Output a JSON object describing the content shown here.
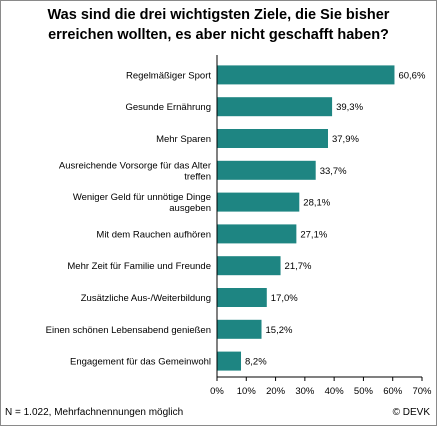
{
  "chart_data": {
    "type": "bar",
    "orientation": "horizontal",
    "title": "Was sind die drei wichtigsten Ziele, die Sie bisher\nerreichen wollten, es aber nicht geschafft haben?",
    "categories": [
      "Regelmäßiger Sport",
      "Gesunde Ernährung",
      "Mehr Sparen",
      "Ausreichende Vorsorge für das Alter\ntreffen",
      "Weniger Geld für unnötige Dinge\nausgeben",
      "Mit dem Rauchen aufhören",
      "Mehr Zeit für Familie und Freunde",
      "Zusätzliche Aus-/Weiterbildung",
      "Einen schönen Lebensabend genießen",
      "Engagement für das Gemeinwohl"
    ],
    "values": [
      60.6,
      39.3,
      37.9,
      33.7,
      28.1,
      27.1,
      21.7,
      17.0,
      15.2,
      8.2
    ],
    "value_labels": [
      "60,6%",
      "39,3%",
      "37,9%",
      "33,7%",
      "28,1%",
      "27,1%",
      "21,7%",
      "17,0%",
      "15,2%",
      "8,2%"
    ],
    "xlim": [
      0,
      70
    ],
    "xticks": [
      "0%",
      "10%",
      "20%",
      "30%",
      "40%",
      "50%",
      "60%",
      "70%"
    ],
    "grid": false,
    "bar_color": "#1e8582",
    "note": "N = 1.022, Mehrfachnennungen möglich",
    "source": "© DEVK"
  }
}
